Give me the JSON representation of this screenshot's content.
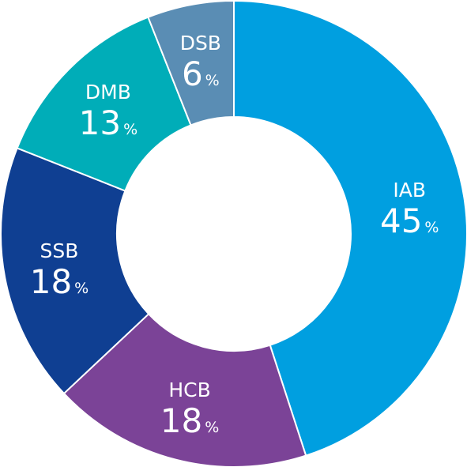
{
  "chart_data": {
    "type": "pie",
    "variant": "donut",
    "start_angle_deg": 0,
    "direction": "clockwise",
    "slices": [
      {
        "label": "IAB",
        "value": 45,
        "unit": "%",
        "color": "#009fe0"
      },
      {
        "label": "HCB",
        "value": 18,
        "unit": "%",
        "color": "#7b4397"
      },
      {
        "label": "SSB",
        "value": 18,
        "unit": "%",
        "color": "#0f3f92"
      },
      {
        "label": "DMB",
        "value": 13,
        "unit": "%",
        "color": "#00adb8"
      },
      {
        "label": "DSB",
        "value": 6,
        "unit": "%",
        "color": "#5a8db4"
      }
    ]
  }
}
